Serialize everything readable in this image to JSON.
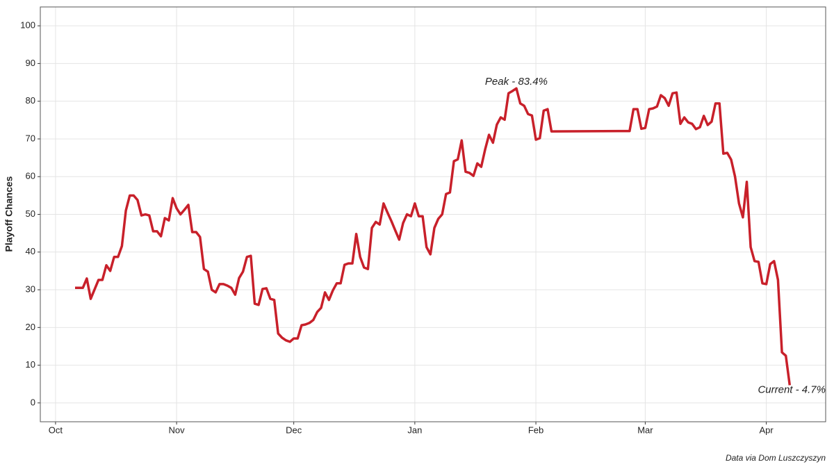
{
  "chart_data": {
    "type": "line",
    "y_label": "Playoff Chances",
    "caption": "Data via Dom Luszczyszyn",
    "x": [
      5,
      7,
      8,
      9,
      11,
      12,
      13,
      14,
      15,
      16,
      17,
      18,
      19,
      20,
      21,
      22,
      23,
      24,
      25,
      26,
      27,
      28,
      29,
      30,
      31,
      32,
      33,
      34,
      35,
      36,
      37,
      38,
      39,
      40,
      41,
      42,
      43,
      44,
      45,
      46,
      47,
      48,
      49,
      50,
      51,
      52,
      53,
      54,
      55,
      56,
      57,
      58,
      59,
      60,
      61,
      62,
      63,
      64,
      65,
      66,
      67,
      68,
      69,
      70,
      71,
      72,
      73,
      74,
      75,
      76,
      77,
      78,
      79,
      80,
      81,
      82,
      83,
      84,
      85,
      86,
      87,
      88,
      89,
      90,
      91,
      92,
      93,
      94,
      95,
      96,
      97,
      98,
      99,
      100,
      101,
      102,
      103,
      104,
      105,
      106,
      107,
      108,
      109,
      110,
      111,
      112,
      113,
      114,
      115,
      116,
      117,
      118,
      119,
      120,
      121,
      122,
      123,
      124,
      125,
      126,
      127,
      147,
      148,
      149,
      150,
      151,
      152,
      153,
      154,
      155,
      156,
      157,
      158,
      159,
      160,
      161,
      162,
      163,
      164,
      165,
      166,
      167,
      168,
      169,
      170,
      171,
      172,
      173,
      174,
      175,
      176,
      177,
      178,
      179,
      180,
      181,
      182,
      183,
      184,
      185,
      186,
      187,
      188
    ],
    "series": [
      {
        "name": "Playoff Chances",
        "color": "#c8202a",
        "values": [
          30.5,
          30.5,
          33,
          27.6,
          32.6,
          32.6,
          36.5,
          35,
          38.7,
          38.7,
          41.6,
          51,
          55,
          55,
          53.8,
          49.7,
          50,
          49.7,
          45.5,
          45.5,
          44.2,
          49,
          48.4,
          54.3,
          51.6,
          50,
          51.2,
          52.5,
          45.3,
          45.3,
          44,
          35.5,
          34.8,
          30,
          29.3,
          31.5,
          31.5,
          31.1,
          30.5,
          28.7,
          33.1,
          34.8,
          38.7,
          39,
          26.3,
          26,
          30.2,
          30.4,
          27.6,
          27.3,
          18.4,
          17.3,
          16.6,
          16.2,
          17.1,
          17.1,
          20.6,
          20.8,
          21.2,
          22,
          24.1,
          25.2,
          29.3,
          27.3,
          29.8,
          31.7,
          31.7,
          36.6,
          37,
          37,
          44.8,
          38.7,
          35.9,
          35.5,
          46.4,
          48,
          47.3,
          52.9,
          50.5,
          48.2,
          45.7,
          43.3,
          47.7,
          50,
          49.5,
          52.9,
          49.5,
          49.5,
          41.3,
          39.4,
          46.4,
          48.8,
          50,
          55.4,
          55.8,
          64.1,
          64.6,
          69.6,
          61.3,
          61,
          60.2,
          63.5,
          62.6,
          67.2,
          71.1,
          69,
          73.8,
          75.7,
          75.1,
          82.1,
          82.7,
          83.4,
          79.4,
          78.8,
          76.6,
          76.2,
          69.8,
          70.2,
          77.5,
          77.9,
          72,
          72.1,
          77.9,
          77.9,
          72.7,
          72.9,
          77.9,
          78.1,
          78.6,
          81.6,
          80.8,
          78.8,
          82.1,
          82.3,
          74,
          75.7,
          74.4,
          74,
          72.6,
          73.1,
          76.1,
          73.7,
          74.6,
          79.4,
          79.4,
          66.1,
          66.3,
          64.5,
          60,
          52.9,
          49.2,
          58.6,
          41.3,
          37.6,
          37.4,
          31.7,
          31.5,
          36.8,
          37.6,
          32.6,
          13.4,
          12.5,
          4.7
        ]
      }
    ],
    "annotations": [
      {
        "text": "Peak - 83.4%",
        "x": 118,
        "y": 83.4
      },
      {
        "text": "Current - 4.7%",
        "x": 188,
        "y": 4.7
      }
    ],
    "xlim": [
      -3.9,
      197.2
    ],
    "ylim": [
      -5,
      105
    ],
    "xticks": [
      {
        "value": 0,
        "label": "Oct"
      },
      {
        "value": 31,
        "label": "Nov"
      },
      {
        "value": 61,
        "label": "Dec"
      },
      {
        "value": 92,
        "label": "Jan"
      },
      {
        "value": 123,
        "label": "Feb"
      },
      {
        "value": 151,
        "label": "Mar"
      },
      {
        "value": 182,
        "label": "Apr"
      }
    ],
    "yticks": [
      0,
      10,
      20,
      30,
      40,
      50,
      60,
      70,
      80,
      90,
      100
    ],
    "grid": true
  }
}
